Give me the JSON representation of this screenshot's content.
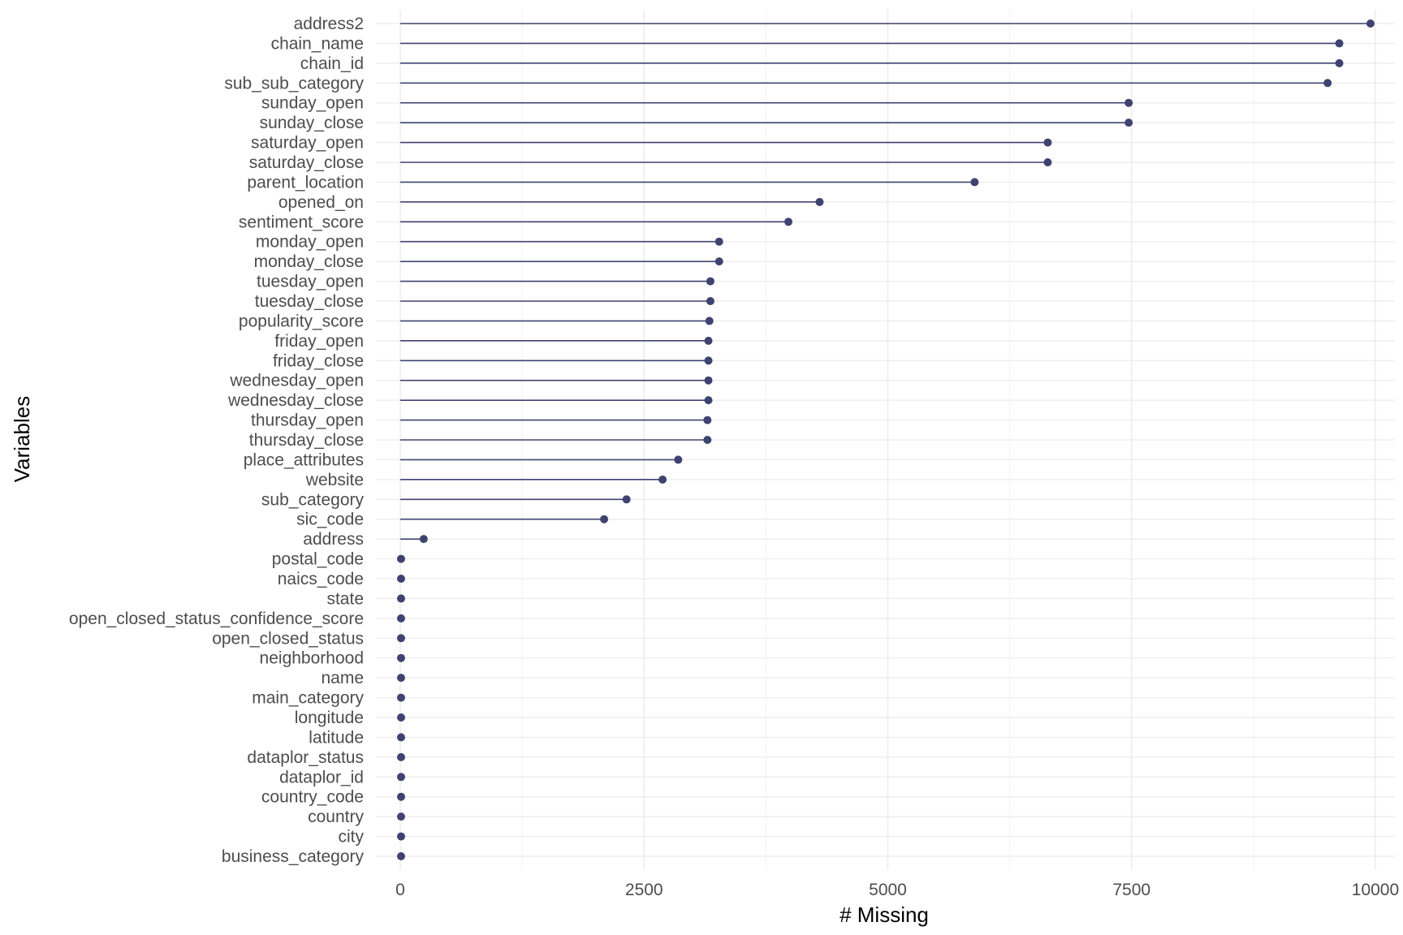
{
  "chart_data": {
    "type": "lollipop",
    "xlabel": "# Missing",
    "ylabel": "Variables",
    "xlim": [
      -250,
      10200
    ],
    "x_ticks": [
      0,
      2500,
      5000,
      7500,
      10000
    ],
    "x_tick_labels": [
      "0",
      "2500",
      "5000",
      "7500",
      "10000"
    ],
    "grid": true,
    "colors": {
      "marker": "#3f4370",
      "grid_major": "#ebebeb",
      "grid_minor": "#f3f3f3"
    },
    "categories": [
      "address2",
      "chain_name",
      "chain_id",
      "sub_sub_category",
      "sunday_open",
      "sunday_close",
      "saturday_open",
      "saturday_close",
      "parent_location",
      "opened_on",
      "sentiment_score",
      "monday_open",
      "monday_close",
      "tuesday_open",
      "tuesday_close",
      "popularity_score",
      "friday_open",
      "friday_close",
      "wednesday_open",
      "wednesday_close",
      "thursday_open",
      "thursday_close",
      "place_attributes",
      "website",
      "sub_category",
      "sic_code",
      "address",
      "postal_code",
      "naics_code",
      "state",
      "open_closed_status_confidence_score",
      "open_closed_status",
      "neighborhood",
      "name",
      "main_category",
      "longitude",
      "latitude",
      "dataplor_status",
      "dataplor_id",
      "country_code",
      "country",
      "city",
      "business_category"
    ],
    "values": [
      9950,
      9630,
      9630,
      9510,
      7470,
      7470,
      6640,
      6640,
      5890,
      4300,
      3980,
      3270,
      3270,
      3180,
      3180,
      3170,
      3160,
      3160,
      3160,
      3160,
      3150,
      3150,
      2850,
      2690,
      2320,
      2090,
      240,
      8,
      8,
      8,
      8,
      8,
      8,
      8,
      8,
      8,
      8,
      8,
      8,
      8,
      8,
      8,
      8
    ]
  }
}
